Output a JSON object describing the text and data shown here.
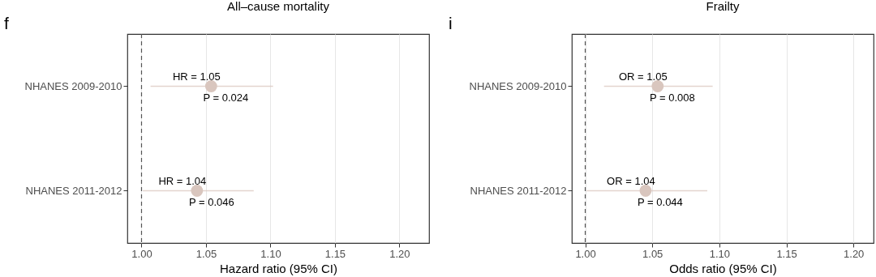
{
  "chart_data": [
    {
      "type": "scatter",
      "orientation": "horizontal",
      "title": "All–cause mortality",
      "xlabel": "Hazard ratio (95% CI)",
      "categories": [
        "NHANES 2009-2010",
        "NHANES 2011-2012"
      ],
      "values": [
        1.054,
        1.043
      ],
      "errors": [
        [
          1.007,
          1.102
        ],
        [
          1.001,
          1.087
        ]
      ],
      "color": "#d9c6be",
      "xlim": [
        0.989,
        1.223
      ],
      "xticks": [
        {
          "value": 1.0,
          "label": "1.00"
        },
        {
          "value": 1.05,
          "label": "1.05"
        },
        {
          "value": 1.1,
          "label": "1.10"
        },
        {
          "value": 1.15,
          "label": "1.15"
        },
        {
          "value": 1.2,
          "label": "1.20"
        }
      ],
      "grid": "x",
      "marker": "circle",
      "ref_lines": [
        {
          "axis": "x",
          "value": 1,
          "line_style": "dashed",
          "color": "#555555"
        }
      ],
      "annotations": [
        "f",
        {
          "text": "HR = 1.05",
          "x": 1.054,
          "y": "NHANES 2009-2010"
        },
        {
          "text": "P = 0.024",
          "x": 1.054,
          "y": "NHANES 2009-2010"
        },
        {
          "text": "HR = 1.04",
          "x": 1.043,
          "y": "NHANES 2011-2012"
        },
        {
          "text": "P = 0.046",
          "x": 1.043,
          "y": "NHANES 2011-2012"
        }
      ]
    },
    {
      "type": "scatter",
      "orientation": "horizontal",
      "title": "Frailty",
      "xlabel": "Odds ratio (95% CI)",
      "categories": [
        "NHANES 2009-2010",
        "NHANES 2011-2012"
      ],
      "values": [
        1.054,
        1.045
      ],
      "errors": [
        [
          1.014,
          1.095
        ],
        [
          1.001,
          1.091
        ]
      ],
      "color": "#d9c6be",
      "xlim": [
        0.99,
        1.215
      ],
      "xticks": [
        {
          "value": 1.0,
          "label": "1.00"
        },
        {
          "value": 1.05,
          "label": "1.05"
        },
        {
          "value": 1.1,
          "label": "1.10"
        },
        {
          "value": 1.15,
          "label": "1.15"
        },
        {
          "value": 1.2,
          "label": "1.20"
        }
      ],
      "grid": "x",
      "marker": "circle",
      "ref_lines": [
        {
          "axis": "x",
          "value": 1,
          "line_style": "dashed",
          "color": "#555555"
        }
      ],
      "annotations": [
        "i",
        {
          "text": "OR = 1.05",
          "x": 1.054,
          "y": "NHANES 2009-2010"
        },
        {
          "text": "P = 0.008",
          "x": 1.054,
          "y": "NHANES 2009-2010"
        },
        {
          "text": "OR = 1.04",
          "x": 1.045,
          "y": "NHANES 2011-2012"
        },
        {
          "text": "P = 0.044",
          "x": 1.045,
          "y": "NHANES 2011-2012"
        }
      ]
    }
  ]
}
